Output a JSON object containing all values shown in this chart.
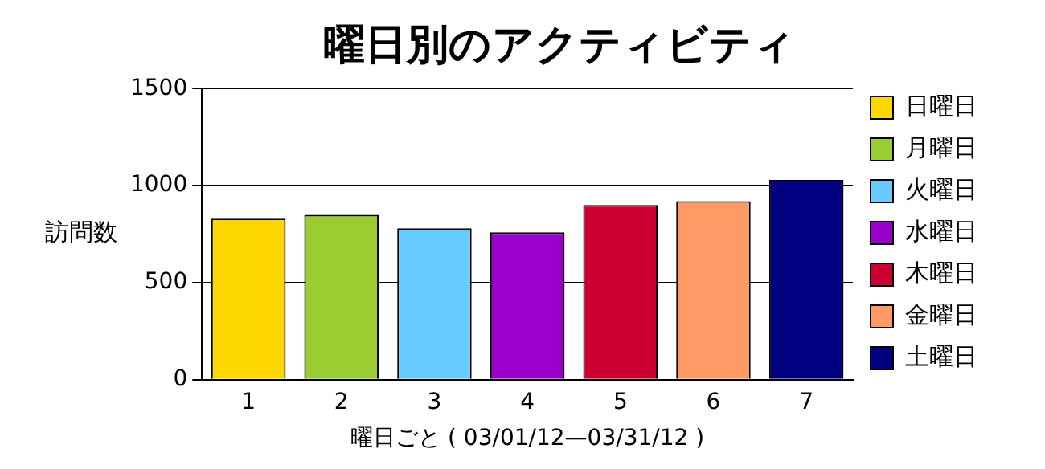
{
  "chart_data": {
    "type": "bar",
    "title": "曜日別のアクティビティ",
    "xlabel": "曜日ごと ( 03/01/12—03/31/12 )",
    "ylabel": "訪問数",
    "categories": [
      "1",
      "2",
      "3",
      "4",
      "5",
      "6",
      "7"
    ],
    "series": [
      {
        "name": "日曜日",
        "color": "#ffd700",
        "values": [
          830,
          null,
          null,
          null,
          null,
          null,
          null
        ]
      },
      {
        "name": "月曜日",
        "color": "#9acd32",
        "values": [
          null,
          850,
          null,
          null,
          null,
          null,
          null
        ]
      },
      {
        "name": "火曜日",
        "color": "#66ccff",
        "values": [
          null,
          null,
          780,
          null,
          null,
          null,
          null
        ]
      },
      {
        "name": "水曜日",
        "color": "#9900cc",
        "values": [
          null,
          null,
          null,
          760,
          null,
          null,
          null
        ]
      },
      {
        "name": "木曜日",
        "color": "#cc0033",
        "values": [
          null,
          null,
          null,
          null,
          900,
          null,
          null
        ]
      },
      {
        "name": "金曜日",
        "color": "#ff9966",
        "values": [
          null,
          null,
          null,
          null,
          null,
          920,
          null
        ]
      },
      {
        "name": "土曜日",
        "color": "#000080",
        "values": [
          null,
          null,
          null,
          null,
          null,
          null,
          1030
        ]
      }
    ],
    "ylim": [
      0,
      1500
    ],
    "yticks": [
      0,
      500,
      1000,
      1500
    ],
    "grid": "y",
    "legend": "right"
  }
}
